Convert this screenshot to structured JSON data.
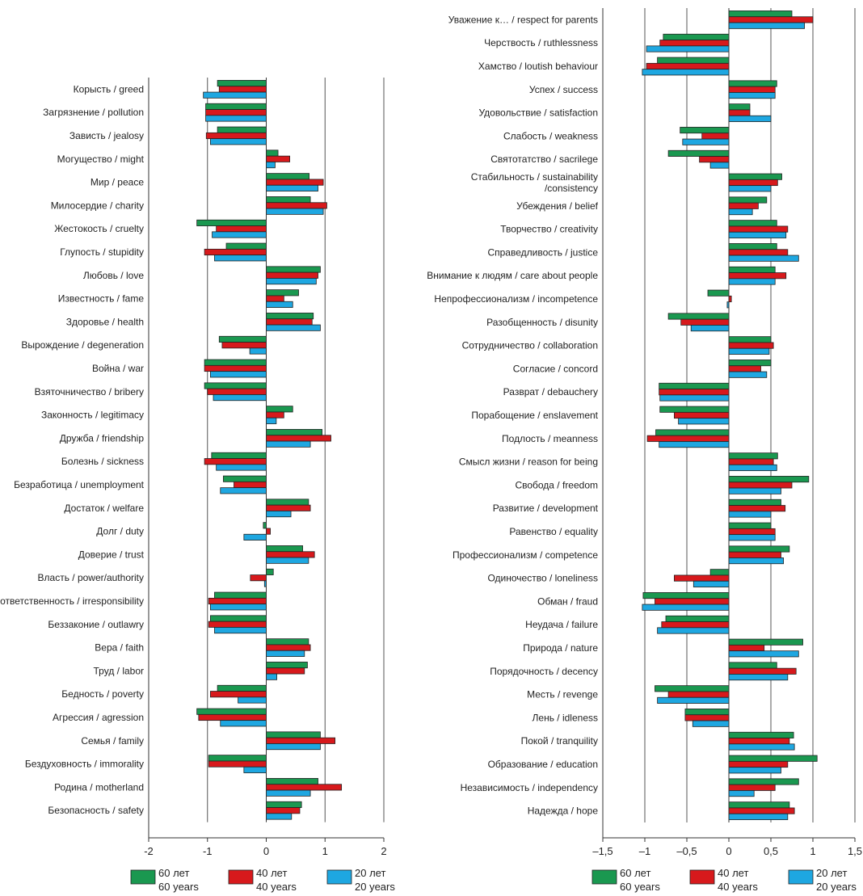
{
  "colors": {
    "60": "#1a9850",
    "40": "#d7191c",
    "20": "#1ea7e1"
  },
  "legend": [
    {
      "key": "60",
      "ru": "60 лет",
      "en": "60 years"
    },
    {
      "key": "40",
      "ru": "40 лет",
      "en": "40 years"
    },
    {
      "key": "20",
      "ru": "20 лет",
      "en": "20 years"
    }
  ],
  "chart_data": [
    {
      "type": "bar",
      "orientation": "horizontal",
      "xlim": [
        -2,
        2
      ],
      "xticks": [
        "-2",
        "-1",
        "0",
        "1",
        "2"
      ],
      "xtick_values": [
        -2,
        -1,
        0,
        1,
        2
      ],
      "grid": true,
      "legend_placement": "bottom",
      "categories": [
        "Корысть / greed",
        "Загрязнение / pollution",
        "Зависть / jealosy",
        "Могущество / might",
        "Мир / peace",
        "Милосердие / charity",
        "Жестокость / cruelty",
        "Глупость / stupidity",
        "Любовь / love",
        "Известность / fame",
        "Здоровье / health",
        "Вырождение / degeneration",
        "Война / war",
        "Взяточничество / bribery",
        "Законность / legitimacy",
        "Дружба / friendship",
        "Болезнь / sickness",
        "Безработица / unemployment",
        "Достаток / welfare",
        "Долг / duty",
        "Доверие / trust",
        "Власть / power/authority",
        "Безответственность / irresponsibility",
        "Беззаконие / outlawry",
        "Вера / faith",
        "Труд / labor",
        "Бедность / poverty",
        "Агрессия / agression",
        "Семья / family",
        "Бездуховность / immorality",
        "Родина / motherland",
        "Безопасность / safety"
      ],
      "series": [
        {
          "name": "60 лет / 60 years",
          "key": "60",
          "values": [
            -0.83,
            -1.03,
            -0.83,
            0.2,
            0.73,
            0.75,
            -1.18,
            -0.68,
            0.92,
            0.55,
            0.8,
            -0.8,
            -1.05,
            -1.05,
            0.45,
            0.95,
            -0.93,
            -0.73,
            0.72,
            -0.05,
            0.62,
            0.12,
            -0.88,
            -0.95,
            0.72,
            0.7,
            -0.83,
            -1.18,
            0.92,
            -0.98,
            0.88,
            0.6
          ]
        },
        {
          "name": "40 лет / 40 years",
          "key": "40",
          "values": [
            -0.8,
            -1.03,
            -1.02,
            0.4,
            0.97,
            1.03,
            -0.85,
            -1.05,
            0.88,
            0.3,
            0.78,
            -0.75,
            -1.05,
            -1.0,
            0.3,
            1.1,
            -1.05,
            -0.55,
            0.75,
            0.07,
            0.82,
            -0.27,
            -0.98,
            -0.98,
            0.75,
            0.65,
            -0.95,
            -1.15,
            1.17,
            -0.98,
            1.28,
            0.57
          ]
        },
        {
          "name": "20 лет / 20 years",
          "key": "20",
          "values": [
            -1.07,
            -1.03,
            -0.95,
            0.15,
            0.88,
            0.97,
            -0.92,
            -0.88,
            0.85,
            0.45,
            0.92,
            -0.28,
            -0.95,
            -0.9,
            0.17,
            0.75,
            -0.85,
            -0.78,
            0.42,
            -0.38,
            0.72,
            -0.03,
            -0.95,
            -0.88,
            0.65,
            0.18,
            -0.48,
            -0.78,
            0.92,
            -0.38,
            0.75,
            0.43
          ]
        }
      ]
    },
    {
      "type": "bar",
      "orientation": "horizontal",
      "xlim": [
        -1.5,
        1.5
      ],
      "xticks": [
        "–1,5",
        "–1",
        "–0,5",
        "0",
        "0,5",
        "1",
        "1,5"
      ],
      "xtick_values": [
        -1.5,
        -1,
        -0.5,
        0,
        0.5,
        1,
        1.5
      ],
      "grid": true,
      "legend_placement": "bottom",
      "categories": [
        "Уважение к… / respect for parents",
        "Черствость / ruthlessness",
        "Хамство / loutish behaviour",
        "Успех / success",
        "Удовольствие / satisfaction",
        "Слабость / weakness",
        "Святотатство / sacrilege",
        "Стабильность / sustainability\n/consistency",
        "Убеждения / belief",
        "Творчество / creativity",
        "Справедливость / justice",
        "Внимание к людям / care about people",
        "Непрофессионализм / incompetence",
        "Разобщенность / disunity",
        "Сотрудничество / collaboration",
        "Согласие / concord",
        "Разврат / debauchery",
        "Порабощение / enslavement",
        "Подлость / meanness",
        "Смысл жизни / reason for being",
        "Свобода / freedom",
        "Развитие / development",
        "Равенство / equality",
        "Профессионализм / competence",
        "Одиночество / loneliness",
        "Обман / fraud",
        "Неудача / failure",
        "Природа / nature",
        "Порядочность / decency",
        "Месть / revenge",
        "Лень / idleness",
        "Покой / tranquility",
        "Образование / education",
        "Независимость / independency",
        "Надежда / hope"
      ],
      "series": [
        {
          "name": "60 лет / 60 years",
          "key": "60",
          "values": [
            0.75,
            -0.78,
            -0.85,
            0.57,
            0.25,
            -0.58,
            -0.72,
            0.63,
            0.45,
            0.57,
            0.57,
            0.55,
            -0.25,
            -0.72,
            0.5,
            0.5,
            -0.83,
            -0.82,
            -0.87,
            0.58,
            0.95,
            0.62,
            0.5,
            0.72,
            -0.22,
            -1.02,
            -0.75,
            0.88,
            0.57,
            -0.88,
            -0.52,
            0.77,
            1.05,
            0.83,
            0.72
          ]
        },
        {
          "name": "40 лет / 40 years",
          "key": "40",
          "values": [
            1.0,
            -0.82,
            -0.98,
            0.55,
            0.25,
            -0.32,
            -0.35,
            0.58,
            0.35,
            0.7,
            0.7,
            0.68,
            0.03,
            -0.57,
            0.53,
            0.38,
            -0.83,
            -0.65,
            -0.97,
            0.53,
            0.75,
            0.67,
            0.55,
            0.62,
            -0.65,
            -0.88,
            -0.8,
            0.42,
            0.8,
            -0.72,
            -0.52,
            0.72,
            0.7,
            0.55,
            0.78
          ]
        },
        {
          "name": "20 лет / 20 years",
          "key": "20",
          "values": [
            0.9,
            -0.98,
            -1.03,
            0.55,
            0.5,
            -0.55,
            -0.22,
            0.5,
            0.28,
            0.68,
            0.83,
            0.55,
            -0.02,
            -0.45,
            0.48,
            0.45,
            -0.82,
            -0.6,
            -0.83,
            0.57,
            0.62,
            0.5,
            0.55,
            0.65,
            -0.42,
            -1.03,
            -0.85,
            0.83,
            0.7,
            -0.85,
            -0.43,
            0.78,
            0.62,
            0.3,
            0.7
          ]
        }
      ]
    }
  ]
}
